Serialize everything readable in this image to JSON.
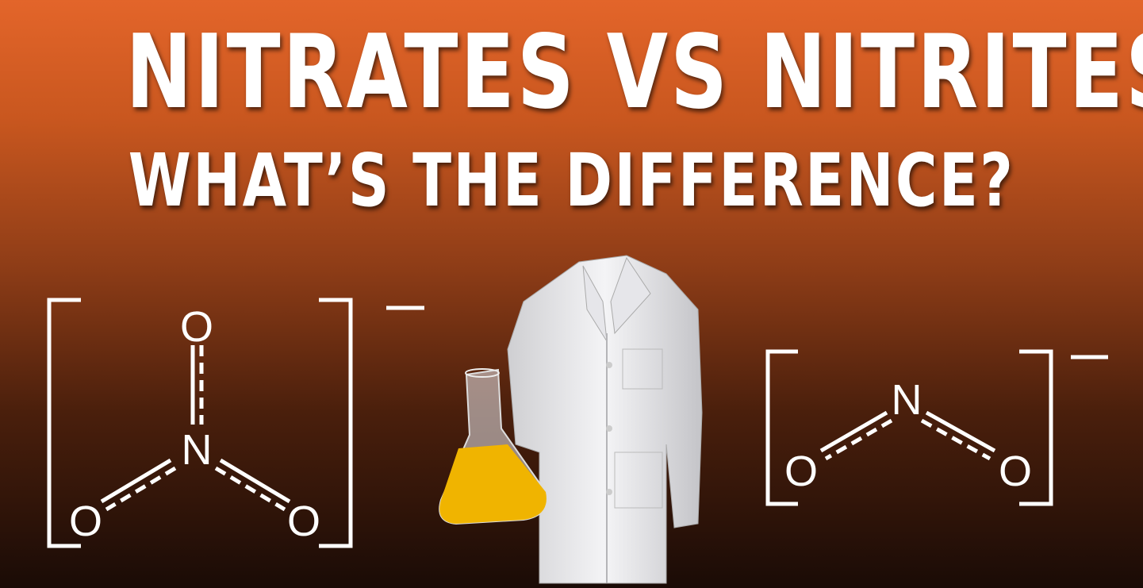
{
  "title": {
    "line1": "NITRATES VS NITRITES",
    "line2": "WHAT’S THE DIFFERENCE?"
  },
  "nitrate": {
    "atoms": [
      "O",
      "N",
      "O",
      "O"
    ],
    "charge": "−"
  },
  "nitrite": {
    "atoms": [
      "N",
      "O",
      "O"
    ],
    "charge": "−"
  },
  "illustration": {
    "items": [
      "lab-coat",
      "erlenmeyer-flask"
    ],
    "liquid_color": "#f0b400"
  },
  "colors": {
    "background_top": "#e3652a",
    "background_bottom": "#1a0b06",
    "text": "#ffffff"
  }
}
